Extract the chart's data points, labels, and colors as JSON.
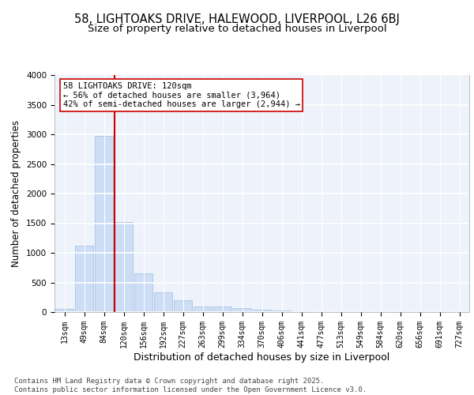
{
  "title1": "58, LIGHTOAKS DRIVE, HALEWOOD, LIVERPOOL, L26 6BJ",
  "title2": "Size of property relative to detached houses in Liverpool",
  "xlabel": "Distribution of detached houses by size in Liverpool",
  "ylabel": "Number of detached properties",
  "categories": [
    "13sqm",
    "49sqm",
    "84sqm",
    "120sqm",
    "156sqm",
    "192sqm",
    "227sqm",
    "263sqm",
    "299sqm",
    "334sqm",
    "370sqm",
    "406sqm",
    "441sqm",
    "477sqm",
    "513sqm",
    "549sqm",
    "584sqm",
    "620sqm",
    "656sqm",
    "691sqm",
    "727sqm"
  ],
  "values": [
    60,
    1120,
    2970,
    1520,
    660,
    335,
    205,
    100,
    100,
    70,
    35,
    30,
    10,
    4,
    2,
    1,
    1,
    0,
    0,
    0,
    0
  ],
  "bar_color": "#ccddf5",
  "bar_edge_color": "#a0bedf",
  "vline_color": "#cc0000",
  "vline_x_index": 3,
  "annotation_text": "58 LIGHTOAKS DRIVE: 120sqm\n← 56% of detached houses are smaller (3,964)\n42% of semi-detached houses are larger (2,944) →",
  "annotation_box_facecolor": "#ffffff",
  "annotation_box_edgecolor": "#cc0000",
  "footnote": "Contains HM Land Registry data © Crown copyright and database right 2025.\nContains public sector information licensed under the Open Government Licence v3.0.",
  "ylim": [
    0,
    4000
  ],
  "yticks": [
    0,
    500,
    1000,
    1500,
    2000,
    2500,
    3000,
    3500,
    4000
  ],
  "fig_bg_color": "#ffffff",
  "plot_bg_color": "#edf2fb",
  "grid_color": "#ffffff",
  "title_fontsize": 10.5,
  "subtitle_fontsize": 9.5,
  "ylabel_fontsize": 8.5,
  "xlabel_fontsize": 9,
  "tick_fontsize": 7,
  "footnote_fontsize": 6.5,
  "annotation_fontsize": 7.5
}
